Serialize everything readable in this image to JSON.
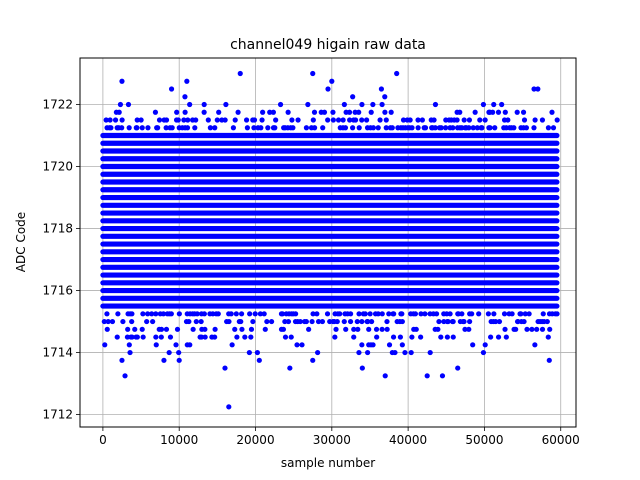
{
  "chart_data": {
    "type": "scatter",
    "title": "channel049 higain raw data",
    "xlabel": "sample number",
    "ylabel": "ADC Code",
    "xlim": [
      -3000,
      62000
    ],
    "ylim": [
      1711.6,
      1723.5
    ],
    "xticks": [
      0,
      10000,
      20000,
      30000,
      40000,
      50000,
      60000
    ],
    "yticks": [
      1712,
      1714,
      1716,
      1718,
      1720,
      1722
    ],
    "grid": true,
    "marker_color": "#0000ff",
    "band": {
      "x_start": 0,
      "x_end": 59500,
      "dense_y_min": 1715.5,
      "dense_y_max": 1721.0,
      "y_step": 0.25
    },
    "outliers": [
      {
        "x": 16500,
        "y": 1712.25
      },
      {
        "x": 16000,
        "y": 1713.5
      },
      {
        "x": 2900,
        "y": 1713.25
      },
      {
        "x": 2500,
        "y": 1713.75
      },
      {
        "x": 8000,
        "y": 1713.75
      },
      {
        "x": 10000,
        "y": 1713.75
      },
      {
        "x": 20500,
        "y": 1713.75
      },
      {
        "x": 24500,
        "y": 1713.5
      },
      {
        "x": 27500,
        "y": 1713.75
      },
      {
        "x": 34000,
        "y": 1713.5
      },
      {
        "x": 37000,
        "y": 1713.25
      },
      {
        "x": 42500,
        "y": 1713.25
      },
      {
        "x": 44500,
        "y": 1713.25
      },
      {
        "x": 46500,
        "y": 1713.5
      },
      {
        "x": 58500,
        "y": 1713.75
      },
      {
        "x": 2500,
        "y": 1722.75
      },
      {
        "x": 11000,
        "y": 1722.75
      },
      {
        "x": 18000,
        "y": 1723.0
      },
      {
        "x": 27500,
        "y": 1723.0
      },
      {
        "x": 30000,
        "y": 1722.75
      },
      {
        "x": 38500,
        "y": 1723.0
      },
      {
        "x": 9000,
        "y": 1722.5
      },
      {
        "x": 29500,
        "y": 1722.5
      },
      {
        "x": 36500,
        "y": 1722.5
      },
      {
        "x": 56500,
        "y": 1722.5
      },
      {
        "x": 57000,
        "y": 1722.5
      }
    ]
  }
}
